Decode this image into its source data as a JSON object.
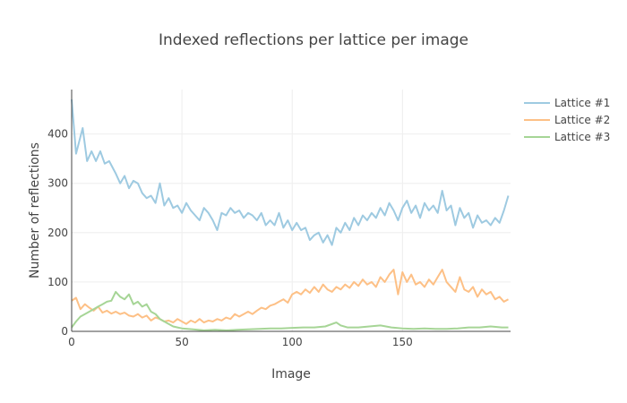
{
  "chart_data": {
    "type": "line",
    "title": "Indexed reflections per lattice per image",
    "xlabel": "Image",
    "ylabel": "Number of reflections",
    "xlim": [
      0,
      199
    ],
    "ylim": [
      0,
      490
    ],
    "xticks": [
      0,
      50,
      100,
      150
    ],
    "yticks": [
      0,
      100,
      200,
      300,
      400
    ],
    "grid": true,
    "legend_position": "top-right",
    "series": [
      {
        "name": "Lattice #1",
        "color": "#9ecae1",
        "points": [
          [
            0,
            470
          ],
          [
            2,
            360
          ],
          [
            5,
            412
          ],
          [
            7,
            345
          ],
          [
            9,
            365
          ],
          [
            11,
            345
          ],
          [
            13,
            365
          ],
          [
            15,
            340
          ],
          [
            17,
            345
          ],
          [
            20,
            320
          ],
          [
            22,
            300
          ],
          [
            24,
            315
          ],
          [
            26,
            290
          ],
          [
            28,
            305
          ],
          [
            30,
            300
          ],
          [
            32,
            280
          ],
          [
            34,
            270
          ],
          [
            36,
            275
          ],
          [
            38,
            260
          ],
          [
            40,
            300
          ],
          [
            42,
            255
          ],
          [
            44,
            270
          ],
          [
            46,
            250
          ],
          [
            48,
            255
          ],
          [
            50,
            240
          ],
          [
            52,
            260
          ],
          [
            54,
            245
          ],
          [
            56,
            235
          ],
          [
            58,
            225
          ],
          [
            60,
            250
          ],
          [
            62,
            240
          ],
          [
            64,
            225
          ],
          [
            66,
            205
          ],
          [
            68,
            240
          ],
          [
            70,
            235
          ],
          [
            72,
            250
          ],
          [
            74,
            240
          ],
          [
            76,
            245
          ],
          [
            78,
            230
          ],
          [
            80,
            240
          ],
          [
            82,
            235
          ],
          [
            84,
            225
          ],
          [
            86,
            240
          ],
          [
            88,
            215
          ],
          [
            90,
            225
          ],
          [
            92,
            215
          ],
          [
            94,
            240
          ],
          [
            96,
            210
          ],
          [
            98,
            225
          ],
          [
            100,
            205
          ],
          [
            102,
            220
          ],
          [
            104,
            205
          ],
          [
            106,
            210
          ],
          [
            108,
            185
          ],
          [
            110,
            195
          ],
          [
            112,
            200
          ],
          [
            114,
            180
          ],
          [
            116,
            195
          ],
          [
            118,
            175
          ],
          [
            120,
            210
          ],
          [
            122,
            200
          ],
          [
            124,
            220
          ],
          [
            126,
            205
          ],
          [
            128,
            230
          ],
          [
            130,
            215
          ],
          [
            132,
            235
          ],
          [
            134,
            225
          ],
          [
            136,
            240
          ],
          [
            138,
            230
          ],
          [
            140,
            250
          ],
          [
            142,
            235
          ],
          [
            144,
            260
          ],
          [
            146,
            245
          ],
          [
            148,
            225
          ],
          [
            150,
            250
          ],
          [
            152,
            265
          ],
          [
            154,
            240
          ],
          [
            156,
            255
          ],
          [
            158,
            230
          ],
          [
            160,
            260
          ],
          [
            162,
            245
          ],
          [
            164,
            255
          ],
          [
            166,
            240
          ],
          [
            168,
            285
          ],
          [
            170,
            245
          ],
          [
            172,
            255
          ],
          [
            174,
            215
          ],
          [
            176,
            250
          ],
          [
            178,
            230
          ],
          [
            180,
            240
          ],
          [
            182,
            210
          ],
          [
            184,
            235
          ],
          [
            186,
            220
          ],
          [
            188,
            225
          ],
          [
            190,
            215
          ],
          [
            192,
            230
          ],
          [
            194,
            220
          ],
          [
            196,
            245
          ],
          [
            198,
            275
          ]
        ]
      },
      {
        "name": "Lattice #2",
        "color": "#fdc086",
        "points": [
          [
            0,
            62
          ],
          [
            2,
            68
          ],
          [
            4,
            45
          ],
          [
            6,
            55
          ],
          [
            8,
            48
          ],
          [
            10,
            42
          ],
          [
            12,
            50
          ],
          [
            14,
            38
          ],
          [
            16,
            42
          ],
          [
            18,
            36
          ],
          [
            20,
            40
          ],
          [
            22,
            35
          ],
          [
            24,
            38
          ],
          [
            26,
            32
          ],
          [
            28,
            30
          ],
          [
            30,
            35
          ],
          [
            32,
            28
          ],
          [
            34,
            32
          ],
          [
            36,
            22
          ],
          [
            38,
            28
          ],
          [
            40,
            25
          ],
          [
            42,
            20
          ],
          [
            44,
            22
          ],
          [
            46,
            18
          ],
          [
            48,
            25
          ],
          [
            50,
            20
          ],
          [
            52,
            15
          ],
          [
            54,
            22
          ],
          [
            56,
            18
          ],
          [
            58,
            25
          ],
          [
            60,
            18
          ],
          [
            62,
            22
          ],
          [
            64,
            20
          ],
          [
            66,
            25
          ],
          [
            68,
            22
          ],
          [
            70,
            28
          ],
          [
            72,
            25
          ],
          [
            74,
            35
          ],
          [
            76,
            30
          ],
          [
            78,
            35
          ],
          [
            80,
            40
          ],
          [
            82,
            35
          ],
          [
            84,
            42
          ],
          [
            86,
            48
          ],
          [
            88,
            45
          ],
          [
            90,
            52
          ],
          [
            92,
            55
          ],
          [
            94,
            60
          ],
          [
            96,
            65
          ],
          [
            98,
            58
          ],
          [
            100,
            75
          ],
          [
            102,
            80
          ],
          [
            104,
            75
          ],
          [
            106,
            85
          ],
          [
            108,
            78
          ],
          [
            110,
            90
          ],
          [
            112,
            80
          ],
          [
            114,
            95
          ],
          [
            116,
            85
          ],
          [
            118,
            80
          ],
          [
            120,
            90
          ],
          [
            122,
            85
          ],
          [
            124,
            95
          ],
          [
            126,
            88
          ],
          [
            128,
            100
          ],
          [
            130,
            92
          ],
          [
            132,
            105
          ],
          [
            134,
            95
          ],
          [
            136,
            100
          ],
          [
            138,
            90
          ],
          [
            140,
            110
          ],
          [
            142,
            100
          ],
          [
            144,
            115
          ],
          [
            146,
            125
          ],
          [
            148,
            75
          ],
          [
            150,
            120
          ],
          [
            152,
            100
          ],
          [
            154,
            115
          ],
          [
            156,
            95
          ],
          [
            158,
            100
          ],
          [
            160,
            90
          ],
          [
            162,
            105
          ],
          [
            164,
            95
          ],
          [
            166,
            110
          ],
          [
            168,
            125
          ],
          [
            170,
            100
          ],
          [
            172,
            90
          ],
          [
            174,
            80
          ],
          [
            176,
            110
          ],
          [
            178,
            85
          ],
          [
            180,
            80
          ],
          [
            182,
            90
          ],
          [
            184,
            70
          ],
          [
            186,
            85
          ],
          [
            188,
            75
          ],
          [
            190,
            80
          ],
          [
            192,
            65
          ],
          [
            194,
            70
          ],
          [
            196,
            60
          ],
          [
            198,
            65
          ]
        ]
      },
      {
        "name": "Lattice #3",
        "color": "#a6d596",
        "points": [
          [
            0,
            8
          ],
          [
            2,
            20
          ],
          [
            4,
            30
          ],
          [
            6,
            35
          ],
          [
            8,
            40
          ],
          [
            10,
            45
          ],
          [
            12,
            50
          ],
          [
            14,
            55
          ],
          [
            16,
            60
          ],
          [
            18,
            62
          ],
          [
            20,
            80
          ],
          [
            22,
            70
          ],
          [
            24,
            65
          ],
          [
            26,
            75
          ],
          [
            28,
            55
          ],
          [
            30,
            60
          ],
          [
            32,
            50
          ],
          [
            34,
            55
          ],
          [
            36,
            40
          ],
          [
            38,
            35
          ],
          [
            40,
            25
          ],
          [
            42,
            20
          ],
          [
            44,
            15
          ],
          [
            46,
            10
          ],
          [
            48,
            8
          ],
          [
            50,
            6
          ],
          [
            55,
            4
          ],
          [
            60,
            2
          ],
          [
            65,
            3
          ],
          [
            70,
            2
          ],
          [
            75,
            3
          ],
          [
            80,
            4
          ],
          [
            85,
            5
          ],
          [
            90,
            6
          ],
          [
            95,
            6
          ],
          [
            100,
            7
          ],
          [
            105,
            8
          ],
          [
            110,
            8
          ],
          [
            115,
            10
          ],
          [
            120,
            18
          ],
          [
            122,
            12
          ],
          [
            125,
            8
          ],
          [
            130,
            8
          ],
          [
            135,
            10
          ],
          [
            140,
            12
          ],
          [
            145,
            8
          ],
          [
            150,
            6
          ],
          [
            155,
            5
          ],
          [
            160,
            6
          ],
          [
            165,
            5
          ],
          [
            170,
            5
          ],
          [
            175,
            6
          ],
          [
            180,
            8
          ],
          [
            185,
            8
          ],
          [
            190,
            10
          ],
          [
            195,
            8
          ],
          [
            198,
            8
          ]
        ]
      }
    ]
  }
}
